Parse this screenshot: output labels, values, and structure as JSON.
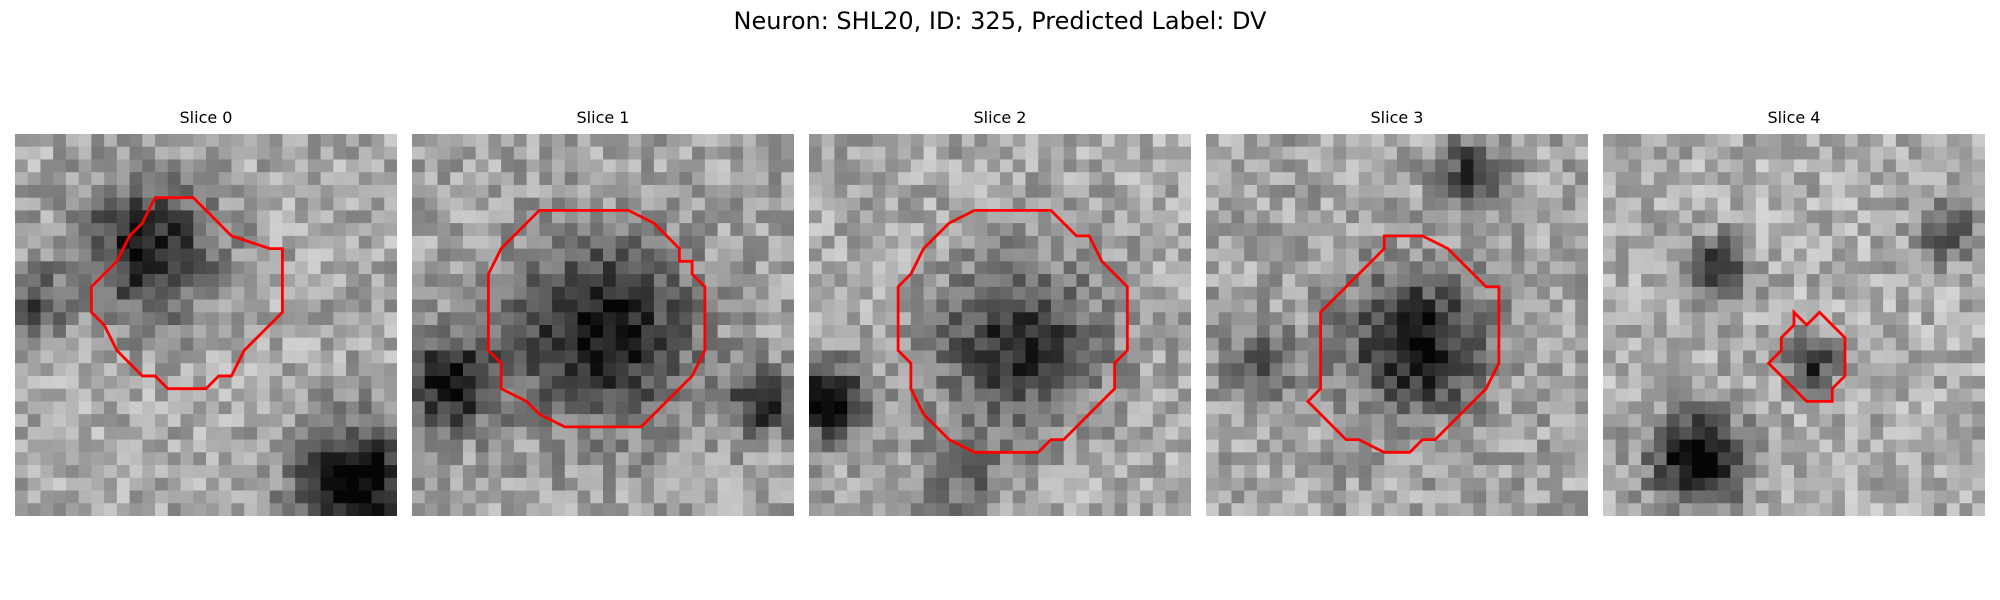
{
  "figure": {
    "title": "Neuron: SHL20, ID: 325, Predicted Label: DV"
  },
  "panels": [
    {
      "title": "Slice 0",
      "contour_color": "#ff0000",
      "seed": 11,
      "darkness": 0.3,
      "blobs": [
        [
          0.35,
          0.3,
          0.22,
          0.55
        ],
        [
          0.9,
          0.92,
          0.2,
          0.7
        ],
        [
          0.05,
          0.45,
          0.12,
          0.35
        ]
      ]
    },
    {
      "title": "Slice 1",
      "contour_color": "#ff0000",
      "seed": 23,
      "darkness": 0.35,
      "blobs": [
        [
          0.5,
          0.52,
          0.28,
          0.6
        ],
        [
          0.1,
          0.65,
          0.15,
          0.6
        ],
        [
          0.92,
          0.7,
          0.1,
          0.55
        ]
      ]
    },
    {
      "title": "Slice 2",
      "contour_color": "#ff0000",
      "seed": 37,
      "darkness": 0.3,
      "blobs": [
        [
          0.55,
          0.55,
          0.26,
          0.5
        ],
        [
          0.05,
          0.7,
          0.12,
          0.7
        ],
        [
          0.4,
          0.9,
          0.15,
          0.25
        ]
      ]
    },
    {
      "title": "Slice 3",
      "contour_color": "#ff0000",
      "seed": 41,
      "darkness": 0.35,
      "blobs": [
        [
          0.55,
          0.55,
          0.22,
          0.6
        ],
        [
          0.7,
          0.1,
          0.1,
          0.45
        ],
        [
          0.15,
          0.6,
          0.12,
          0.3
        ]
      ]
    },
    {
      "title": "Slice 4",
      "contour_color": "#ff0000",
      "seed": 53,
      "darkness": 0.25,
      "blobs": [
        [
          0.25,
          0.85,
          0.15,
          0.75
        ],
        [
          0.3,
          0.35,
          0.1,
          0.45
        ],
        [
          0.55,
          0.6,
          0.08,
          0.5
        ],
        [
          0.9,
          0.25,
          0.1,
          0.4
        ]
      ]
    }
  ]
}
